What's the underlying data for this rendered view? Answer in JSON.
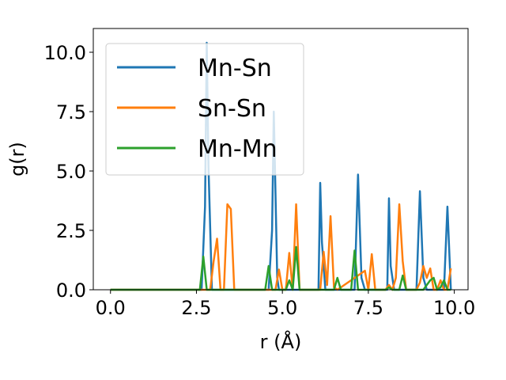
{
  "chart_data": {
    "type": "line",
    "title": "",
    "xlabel": "r (Å)",
    "ylabel": "g(r)",
    "xlim": [
      -0.5,
      10.4
    ],
    "ylim": [
      0,
      11
    ],
    "xticks": [
      "0.0",
      "2.5",
      "5.0",
      "7.5",
      "10.0"
    ],
    "yticks": [
      "0.0",
      "2.5",
      "5.0",
      "7.5",
      "10.0"
    ],
    "grid": false,
    "legend_position": "top-left",
    "series": [
      {
        "name": "Mn-Sn",
        "color": "#1f77b4",
        "x": [
          0.0,
          2.5,
          2.65,
          2.75,
          2.8,
          2.85,
          2.95,
          3.0,
          4.5,
          4.6,
          4.7,
          4.75,
          4.85,
          4.9,
          6.0,
          6.05,
          6.1,
          6.15,
          6.25,
          6.3,
          7.0,
          7.1,
          7.2,
          7.3,
          7.4,
          8.0,
          8.05,
          8.1,
          8.15,
          8.25,
          8.8,
          8.9,
          9.0,
          9.1,
          9.2,
          9.6,
          9.7,
          9.8,
          9.9
        ],
        "y": [
          0,
          0,
          0,
          3.5,
          10.4,
          5.2,
          0,
          0,
          0,
          0,
          2.5,
          7.5,
          0.5,
          0,
          0,
          0,
          4.5,
          2.0,
          0,
          0,
          0,
          0,
          4.85,
          0.5,
          0,
          0,
          0,
          3.85,
          1.0,
          0,
          0,
          0,
          4.15,
          0.5,
          0,
          0,
          0,
          3.5,
          0
        ]
      },
      {
        "name": "Sn-Sn",
        "color": "#ff7f0e",
        "x": [
          0.0,
          2.9,
          3.0,
          3.1,
          3.2,
          3.3,
          3.4,
          3.5,
          3.6,
          4.6,
          4.8,
          4.9,
          5.0,
          5.1,
          5.2,
          5.3,
          5.4,
          5.5,
          6.1,
          6.2,
          6.3,
          6.4,
          6.5,
          6.6,
          7.4,
          7.5,
          7.6,
          7.7,
          7.8,
          8.0,
          8.1,
          8.2,
          8.3,
          8.4,
          8.5,
          8.6,
          8.8,
          8.9,
          9.0,
          9.1,
          9.2,
          9.3,
          9.4,
          9.5,
          9.6,
          9.7,
          9.8,
          9.9
        ],
        "y": [
          0,
          0,
          1.2,
          2.15,
          0,
          0,
          3.6,
          3.4,
          0,
          0,
          0,
          0.85,
          0,
          0,
          1.55,
          0,
          3.6,
          0,
          0,
          1.6,
          0.2,
          3.1,
          0.1,
          0,
          0.8,
          0,
          1.5,
          0,
          0,
          0,
          0.2,
          0,
          0.5,
          3.6,
          1.2,
          0,
          0,
          0,
          0.3,
          1.0,
          0.5,
          0.9,
          0,
          0,
          0.4,
          0,
          0,
          0.9
        ]
      },
      {
        "name": "Mn-Mn",
        "color": "#2ca02c",
        "x": [
          0.0,
          2.6,
          2.7,
          2.8,
          4.5,
          4.6,
          4.7,
          5.1,
          5.2,
          5.3,
          5.4,
          5.5,
          6.5,
          6.6,
          6.7,
          7.0,
          7.1,
          7.2,
          8.0,
          8.1,
          8.2,
          8.4,
          8.5,
          8.6,
          9.0,
          9.1,
          9.2,
          9.3,
          9.4,
          9.5,
          9.6,
          9.7,
          9.8,
          9.9
        ],
        "y": [
          0,
          0,
          1.4,
          0,
          0,
          1.0,
          0,
          0,
          0.4,
          0,
          1.8,
          0,
          0,
          0.5,
          0,
          0,
          1.65,
          0,
          0,
          0.1,
          0,
          0,
          0.6,
          0,
          0,
          0,
          0.2,
          0.4,
          0.5,
          0,
          0.1,
          0.4,
          0,
          0
        ]
      }
    ]
  }
}
